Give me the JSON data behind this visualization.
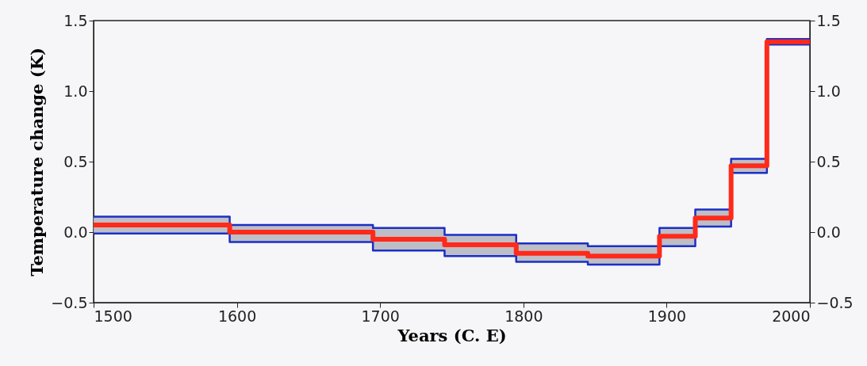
{
  "chart_data": {
    "type": "step",
    "xlabel": "Years (C. E)",
    "ylabel": "Temperature change (K)",
    "x": [
      1500,
      1595,
      1695,
      1745,
      1795,
      1845,
      1895,
      1920,
      1945,
      1970,
      2000
    ],
    "series": [
      {
        "color": "#1a2fc8",
        "values": [
          -0.01,
          -0.07,
          -0.13,
          -0.17,
          -0.21,
          -0.23,
          -0.1,
          0.04,
          0.42,
          1.33,
          1.33
        ]
      },
      {
        "color": "#1a2fc8",
        "values": [
          0.11,
          0.05,
          0.03,
          -0.02,
          -0.08,
          -0.1,
          0.03,
          0.16,
          0.52,
          1.37,
          1.37
        ]
      },
      {
        "color": "#ff2a1a",
        "values": [
          0.05,
          0.0,
          -0.05,
          -0.09,
          -0.15,
          -0.17,
          -0.03,
          0.1,
          0.47,
          1.35,
          1.35
        ],
        "lower": [
          -0.01,
          -0.07,
          -0.13,
          -0.17,
          -0.21,
          -0.23,
          -0.1,
          0.04,
          0.42,
          1.33,
          1.33
        ],
        "upper": [
          0.11,
          0.05,
          0.03,
          -0.02,
          -0.08,
          -0.1,
          0.03,
          0.16,
          0.52,
          1.37,
          1.37
        ]
      }
    ],
    "xlim": [
      1500,
      2000
    ],
    "xticks": [
      1500,
      1600,
      1700,
      1800,
      1900,
      2000
    ],
    "ylim": [
      -0.5,
      1.5
    ],
    "yticks": [
      {
        "value": -0.5,
        "label": "−0.5"
      },
      {
        "value": 0,
        "label": "0.0"
      },
      {
        "value": 0.5,
        "label": "0.5"
      },
      {
        "value": 1,
        "label": "1.0"
      },
      {
        "value": 1.5,
        "label": "1.5"
      }
    ],
    "y2lim": [
      -0.5,
      1.5
    ],
    "y2ticks": [
      {
        "value": -0.5,
        "label": "−0.5"
      },
      {
        "value": 0,
        "label": "0.0"
      },
      {
        "value": 0.5,
        "label": "0.5"
      },
      {
        "value": 1,
        "label": "1.0"
      },
      {
        "value": 1.5,
        "label": "1.5"
      }
    ],
    "grid": false
  }
}
